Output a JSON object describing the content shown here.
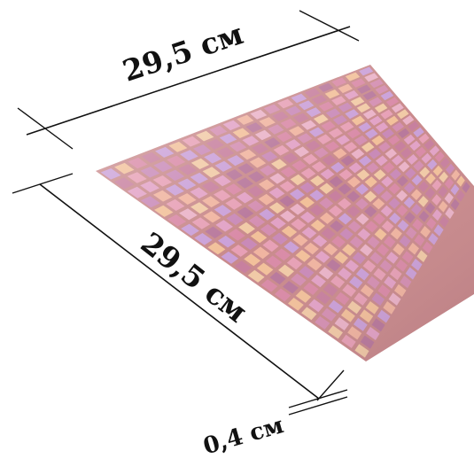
{
  "dimensions": {
    "top_width": "29,5 см",
    "side_length": "29,5 см",
    "thickness": "0,4 см"
  },
  "mosaic": {
    "rows": 20,
    "cols": 20,
    "palette": [
      "#e7a0b6",
      "#d98aa7",
      "#c77f9e",
      "#f0b4a0",
      "#e2a2c6",
      "#caa0d8",
      "#f2c09a",
      "#d48fb2",
      "#b8789c",
      "#eab3c8",
      "#f1caa6",
      "#c98ab8"
    ],
    "grout_color": "#c98a8c"
  },
  "colors": {
    "dimension_line": "#111111",
    "background": "#ffffff"
  }
}
